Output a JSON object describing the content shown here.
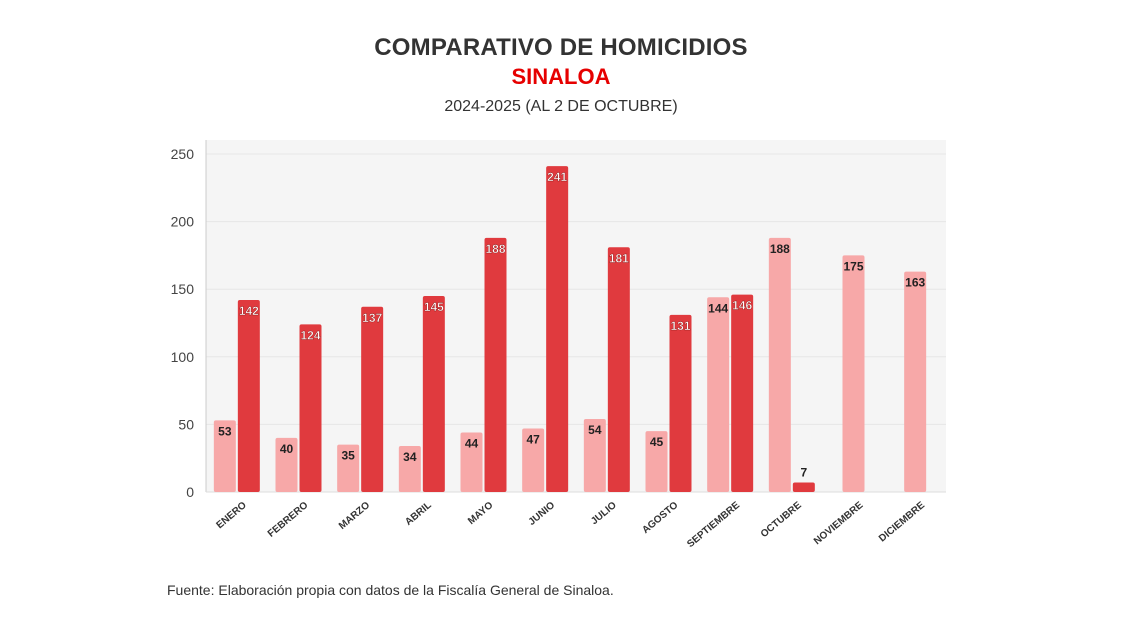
{
  "title": "COMPARATIVO DE HOMICIDIOS",
  "subtitle": "SINALOA",
  "period": "2024-2025 (AL 2 DE OCTUBRE)",
  "source": "Fuente: Elaboración propia con datos de la Fiscalía General de Sinaloa.",
  "chart_data": {
    "type": "bar",
    "categories": [
      "ENERO",
      "FEBRERO",
      "MARZO",
      "ABRIL",
      "MAYO",
      "JUNIO",
      "JULIO",
      "AGOSTO",
      "SEPTIEMBRE",
      "OCTUBRE",
      "NOVIEMBRE",
      "DICIEMBRE"
    ],
    "series": [
      {
        "values": [
          53,
          40,
          35,
          34,
          44,
          47,
          54,
          45,
          144,
          188,
          175,
          163
        ],
        "color": "#f7a8a8"
      },
      {
        "values": [
          142,
          124,
          137,
          145,
          188,
          241,
          181,
          131,
          146,
          7,
          null,
          null
        ],
        "color": "#e03a3e"
      }
    ],
    "ylim": [
      0,
      250
    ],
    "yticks": [
      0,
      50,
      100,
      150,
      200,
      250
    ],
    "grid": true,
    "xlabel": "",
    "ylabel": "",
    "plot_background": "#f5f5f5"
  }
}
